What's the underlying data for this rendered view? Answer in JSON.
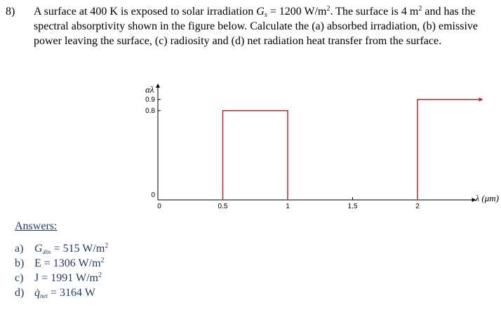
{
  "problem": {
    "number": "8)",
    "line1_a": "A surface at 400 K is exposed to solar irradiation ",
    "gs_symbol": "G",
    "gs_sub": "s",
    "line1_b": " = 1200 W/m",
    "line1_sup": "2",
    "line1_c": ".  The surface is 4 m",
    "line1_sup2": "2",
    "line1_d": " and has the",
    "line2": "spectral absorptivity shown in the figure below.  Calculate the (a) absorbed irradiation, (b) emissive",
    "line3": "power leaving the surface, (c) radiosity and (d) net radiation heat transfer from the surface."
  },
  "chart_data": {
    "type": "line",
    "title": "",
    "xlabel": "λ (μm)",
    "ylabel": "αλ",
    "xlim": [
      0,
      2.5
    ],
    "ylim": [
      0,
      1.0
    ],
    "x_ticks": [
      "0",
      "0.5",
      "1",
      "1.5",
      "2"
    ],
    "x_tick_values": [
      0,
      0.5,
      1,
      1.5,
      2
    ],
    "y_ticks": [
      "0",
      "0.8",
      "0.9"
    ],
    "y_tick_values": [
      0,
      0.8,
      0.9
    ],
    "grid": false,
    "series": [
      {
        "color": "#c0262b",
        "points": [
          [
            0.5,
            0
          ],
          [
            0.5,
            0.8
          ],
          [
            1.0,
            0.8
          ],
          [
            1.0,
            0
          ],
          [
            2.0,
            0
          ],
          [
            2.0,
            0.9
          ],
          [
            2.5,
            0.9
          ]
        ],
        "segments": [
          [
            [
              0.5,
              0
            ],
            [
              0.5,
              0.8
            ],
            [
              1.0,
              0.8
            ],
            [
              1.0,
              0
            ]
          ],
          [
            [
              2.0,
              0
            ],
            [
              2.0,
              0.9
            ],
            [
              2.5,
              0.9
            ]
          ]
        ]
      }
    ]
  },
  "answers": {
    "heading": "Answers:",
    "items": [
      {
        "letter": "a)",
        "lhs": "G",
        "lhs_sub": "abs",
        "rhs": " = 515 W/m",
        "sup": "2"
      },
      {
        "letter": "b)",
        "lhs": "E",
        "lhs_sub": "",
        "rhs": " = 1306 W/m",
        "sup": "2"
      },
      {
        "letter": "c)",
        "lhs": "J",
        "lhs_sub": "",
        "rhs": " = 1991 W/m",
        "sup": "2"
      },
      {
        "letter": "d)",
        "lhs": "q̇",
        "lhs_sub": "net",
        "rhs": " = 3164 W",
        "sup": ""
      }
    ]
  }
}
